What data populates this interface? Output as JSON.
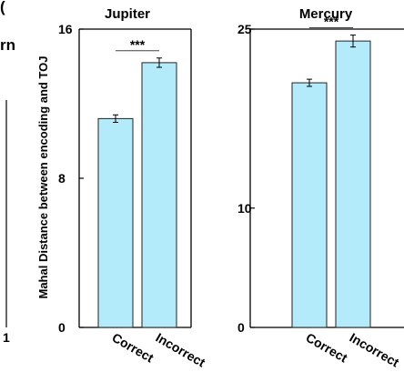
{
  "fragments": {
    "top_left": "(",
    "left_title": "rn",
    "left_tick": "1"
  },
  "colors": {
    "bar_fill": "#b3ebfb",
    "bar_stroke": "#222222",
    "axis": "#000000"
  },
  "chart_data": [
    {
      "type": "bar",
      "title": "Jupiter",
      "ylabel": "Mahal Distance between encoding and TOJ",
      "categories": [
        "Correct",
        "Incorrect"
      ],
      "values": [
        11.2,
        14.2
      ],
      "errors": [
        0.2,
        0.25
      ],
      "ylim": [
        0,
        16
      ],
      "yticks": [
        "0",
        "8",
        "16"
      ],
      "significance": "***"
    },
    {
      "type": "bar",
      "title": "Mercury",
      "ylabel": "",
      "categories": [
        "Correct",
        "Incorrect"
      ],
      "values": [
        20.5,
        24.0
      ],
      "errors": [
        0.3,
        0.5
      ],
      "ylim": [
        0,
        25
      ],
      "yticks": [
        "0",
        "10",
        "25"
      ],
      "significance": "***"
    }
  ]
}
